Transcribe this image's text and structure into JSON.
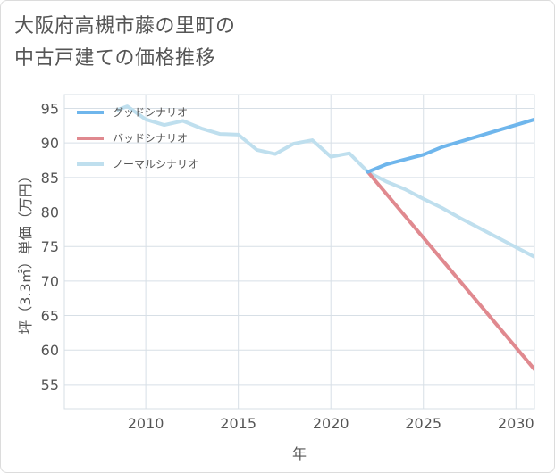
{
  "title_line1": "大阪府高槻市藤の里町の",
  "title_line2": "中古戸建ての価格推移",
  "chart_data": {
    "type": "line",
    "xlabel": "年",
    "ylabel": "坪（3.3㎡）単価（万円）",
    "xlim": [
      2005.6,
      2031
    ],
    "ylim": [
      51.5,
      97
    ],
    "xticks": [
      2010,
      2015,
      2020,
      2025,
      2030
    ],
    "yticks": [
      55,
      60,
      65,
      70,
      75,
      80,
      85,
      90,
      95
    ],
    "grid": true,
    "legend_position": "top-left",
    "series": [
      {
        "name": "グッドシナリオ",
        "color": "#6fb6ec",
        "x": [
          2022,
          2023,
          2024,
          2025,
          2026,
          2027,
          2028,
          2029,
          2030,
          2031
        ],
        "y": [
          85.8,
          86.9,
          87.6,
          88.3,
          89.4,
          90.2,
          91.0,
          91.8,
          92.6,
          93.4
        ]
      },
      {
        "name": "バッドシナリオ",
        "color": "#e0898f",
        "x": [
          2022,
          2031
        ],
        "y": [
          85.8,
          57.2
        ]
      },
      {
        "name": "ノーマルシナリオ",
        "color": "#bfdfee",
        "x": [
          2008.5,
          2009,
          2010,
          2011,
          2012,
          2013,
          2014,
          2015,
          2016,
          2017,
          2018,
          2019,
          2020,
          2021,
          2022,
          2023,
          2024,
          2025,
          2026,
          2027,
          2028,
          2029,
          2030,
          2031
        ],
        "y": [
          94.8,
          95.3,
          93.4,
          92.6,
          93.2,
          92.1,
          91.3,
          91.2,
          89.0,
          88.4,
          89.9,
          90.4,
          88.0,
          88.5,
          85.8,
          84.4,
          83.3,
          81.9,
          80.6,
          79.1,
          77.7,
          76.3,
          74.9,
          73.5
        ]
      }
    ]
  }
}
